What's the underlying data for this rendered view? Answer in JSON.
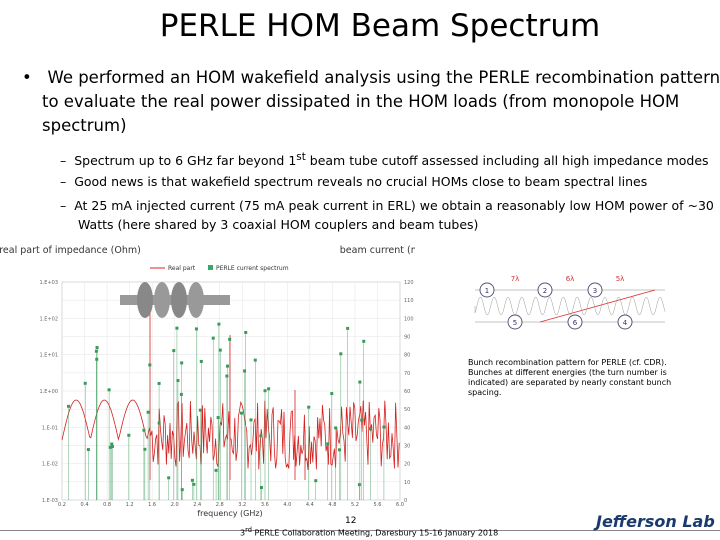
{
  "header": {
    "title": "PERLE HOM Beam Spectrum"
  },
  "bullet": "We performed an HOM wakefield analysis using the PERLE recombination pattern to evaluate the real power dissipated in the HOM loads (from monopole HOM spectrum)",
  "sub_bullets": [
    {
      "before": "Spectrum up to 6 GHz far beyond 1",
      "sup": "st",
      "after": " beam tube cutoff assessed including all high impedance modes"
    },
    {
      "before": "Good news is that wakefield spectrum reveals no crucial HOMs close to beam spectral lines"
    },
    {
      "before": "At 25 mA injected current (75 mA peak current in ERL) we obtain a reasonably low HOM power of ~30 Watts (here shared by 3 coaxial HOM couplers and beam tubes)"
    }
  ],
  "figure": {
    "y_left_label": "real part of impedance (Ohm)",
    "y_right_label": "beam current (mA)",
    "x_label": "frequency (GHz)",
    "legend": [
      "Real part",
      "PERLE current spectrum"
    ],
    "y_left_ticks": [
      "1.E+03",
      "1.E+02",
      "1.E+01",
      "1.E+00",
      "1.E-01",
      "1.E-02",
      "1.E-03"
    ],
    "y_right_ticks": [
      "120",
      "110",
      "100",
      "90",
      "80",
      "70",
      "60",
      "50",
      "40",
      "30",
      "20",
      "10",
      "0"
    ],
    "x_ticks": [
      "0.2",
      "0.4",
      "0.8",
      "1.2",
      "1.6",
      "2.0",
      "2.4",
      "2.8",
      "3.2",
      "3.6",
      "4.0",
      "4.4",
      "4.8",
      "5.2",
      "5.6",
      "6.0"
    ]
  },
  "diagram": {
    "top_nodes": [
      "1",
      "2",
      "3"
    ],
    "bottom_nodes": [
      "5",
      "6",
      "4"
    ],
    "spacings": [
      "7λ",
      "6λ",
      "5λ"
    ]
  },
  "caption": "Bunch recombination pattern for PERLE (cf. CDR). Bunches at different energies (the turn number is indicated) are separated by nearly constant bunch spacing.",
  "footer": {
    "page": "12",
    "ordinal": "3",
    "ordinal_sup": "rd",
    "event": " PERLE Collaboration Meeting, Daresbury 15-16 January 2018",
    "logo": "Jefferson Lab"
  }
}
